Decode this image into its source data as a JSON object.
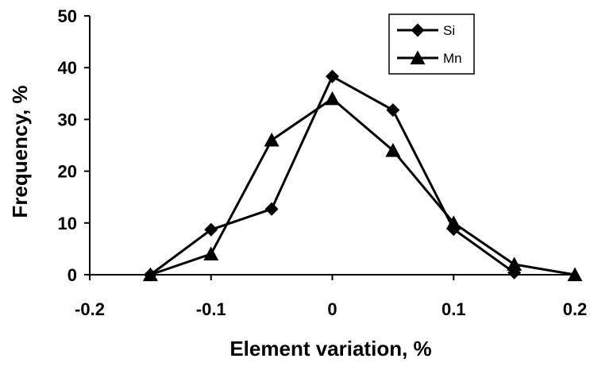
{
  "chart_data": {
    "type": "line",
    "title": "",
    "xlabel": "Element variation, %",
    "ylabel": "Frequency, %",
    "xlim": [
      -0.2,
      0.2
    ],
    "ylim": [
      0,
      50
    ],
    "x_ticks": [
      "-0.2",
      "-0.1",
      "0",
      "0.1",
      "0.2"
    ],
    "x_tick_values": [
      -0.2,
      -0.1,
      0,
      0.1,
      0.2
    ],
    "y_ticks": [
      "0",
      "10",
      "20",
      "30",
      "40",
      "50"
    ],
    "y_tick_values": [
      0,
      10,
      20,
      30,
      40,
      50
    ],
    "grid": false,
    "legend_position": "top-right",
    "series": [
      {
        "name": "Si",
        "marker": "diamond",
        "color": "#000000",
        "x": [
          -0.15,
          -0.1,
          -0.05,
          0,
          0.05,
          0.1,
          0.15
        ],
        "y": [
          0,
          8.7,
          12.7,
          38.3,
          31.8,
          8.8,
          0.4
        ]
      },
      {
        "name": "Mn",
        "marker": "triangle",
        "color": "#000000",
        "x": [
          -0.15,
          -0.1,
          -0.05,
          0,
          0.05,
          0.1,
          0.15,
          0.2
        ],
        "y": [
          0,
          4,
          26,
          34,
          24,
          10,
          2,
          0
        ]
      }
    ]
  }
}
